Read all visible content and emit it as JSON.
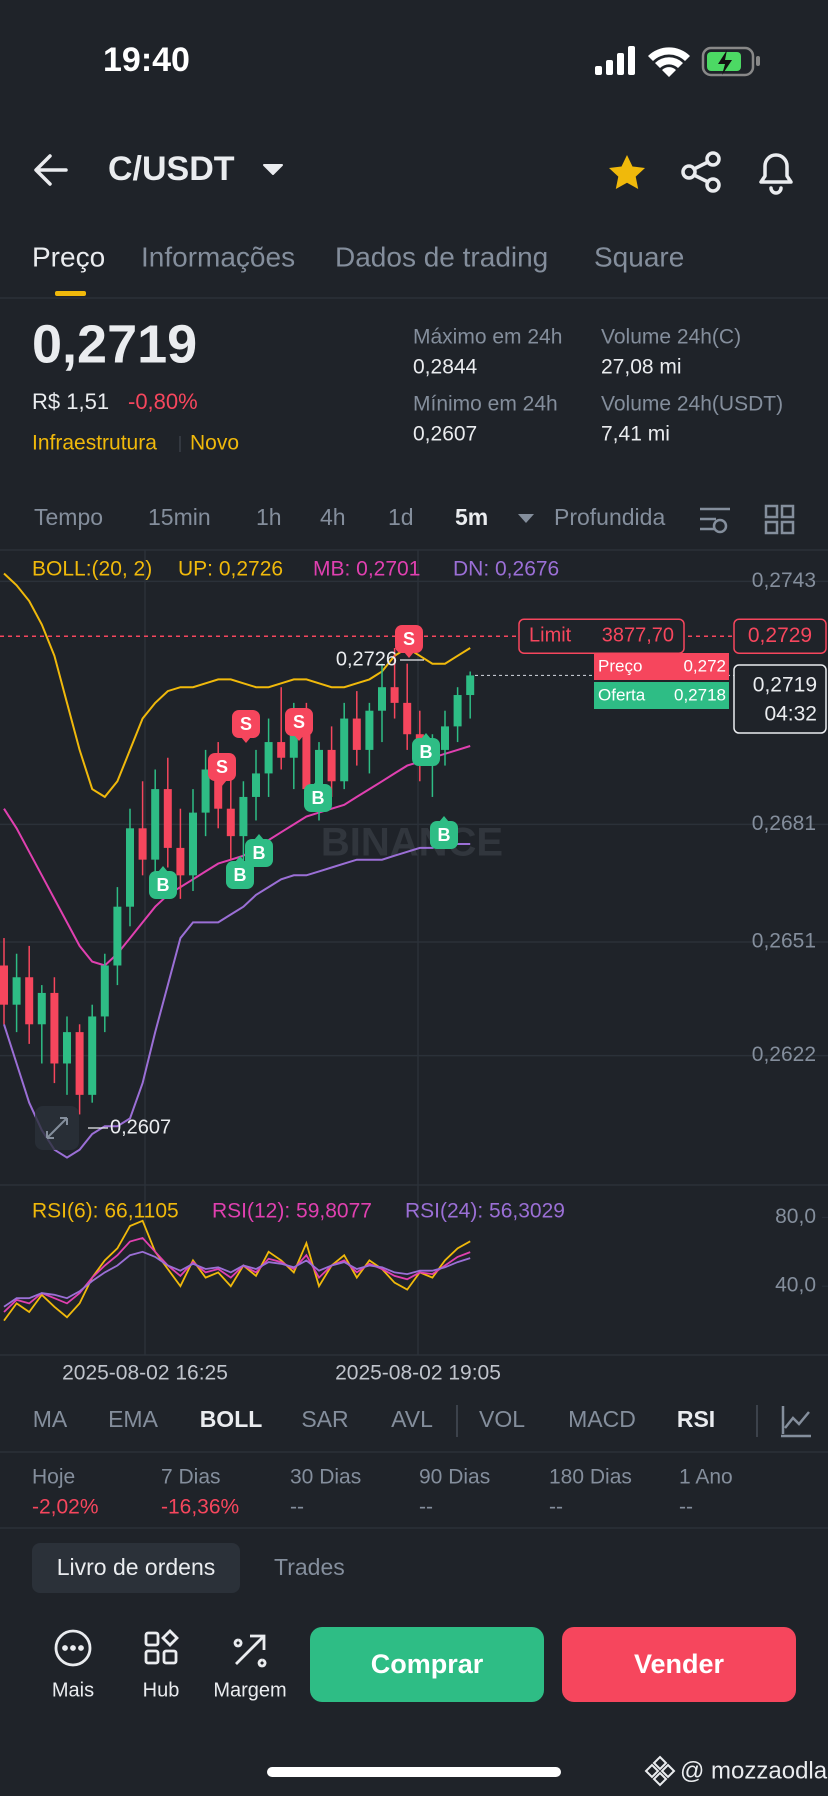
{
  "status_bar": {
    "time": "19:40"
  },
  "header": {
    "pair": "C/USDT"
  },
  "tabs": [
    "Preço",
    "Informações",
    "Dados de trading",
    "Square"
  ],
  "price": {
    "last": "0,2719",
    "fiat": "R$ 1,51",
    "change": "-0,80%",
    "tags": [
      "Infraestrutura",
      "Novo"
    ]
  },
  "stats": [
    {
      "label": "Máximo em 24h",
      "value": "0,2844"
    },
    {
      "label": "Mínimo em 24h",
      "value": "0,2607"
    },
    {
      "label": "Volume 24h(C)",
      "value": "27,08 mi"
    },
    {
      "label": "Volume 24h(USDT)",
      "value": "7,41 mi"
    }
  ],
  "intervals": [
    "Tempo",
    "15min",
    "1h",
    "4h",
    "1d",
    "5m",
    "Profundida"
  ],
  "chart_data": [
    {
      "type": "candlestick",
      "indicator": "BOLL:(20, 2)",
      "up_color": "#2ebd85",
      "down_color": "#f6465d",
      "open": [
        0.2645,
        0.2635,
        0.2642,
        0.263,
        0.2638,
        0.262,
        0.2628,
        0.2612,
        0.2632,
        0.2645,
        0.266,
        0.268,
        0.2672,
        0.269,
        0.2675,
        0.2668,
        0.2684,
        0.2695,
        0.2685,
        0.2678,
        0.2688,
        0.2694,
        0.2702,
        0.2698,
        0.2708,
        0.269,
        0.27,
        0.2692,
        0.2708,
        0.27,
        0.271,
        0.2716,
        0.2712,
        0.2704,
        0.2696,
        0.27,
        0.2706,
        0.2714
      ],
      "high": [
        0.2652,
        0.2648,
        0.265,
        0.264,
        0.2642,
        0.2632,
        0.263,
        0.2635,
        0.2648,
        0.2665,
        0.2685,
        0.2692,
        0.2695,
        0.2698,
        0.2685,
        0.269,
        0.27,
        0.2702,
        0.2695,
        0.2692,
        0.27,
        0.2708,
        0.2716,
        0.2712,
        0.2712,
        0.2702,
        0.2706,
        0.2712,
        0.2715,
        0.2712,
        0.2722,
        0.2726,
        0.2722,
        0.271,
        0.2704,
        0.271,
        0.2716,
        0.272
      ],
      "low": [
        0.263,
        0.2628,
        0.2625,
        0.262,
        0.2615,
        0.2612,
        0.2607,
        0.261,
        0.2628,
        0.264,
        0.2655,
        0.2668,
        0.2665,
        0.267,
        0.2662,
        0.2664,
        0.2678,
        0.268,
        0.2672,
        0.267,
        0.2682,
        0.2688,
        0.2695,
        0.269,
        0.2685,
        0.2682,
        0.2688,
        0.269,
        0.2696,
        0.2694,
        0.2702,
        0.2708,
        0.27,
        0.2692,
        0.2688,
        0.2696,
        0.2702,
        0.2708
      ],
      "close": [
        0.2635,
        0.2642,
        0.263,
        0.2638,
        0.262,
        0.2628,
        0.2612,
        0.2632,
        0.2645,
        0.266,
        0.268,
        0.2672,
        0.269,
        0.2675,
        0.2668,
        0.2684,
        0.2695,
        0.2685,
        0.2678,
        0.2688,
        0.2694,
        0.2702,
        0.2698,
        0.2708,
        0.269,
        0.27,
        0.2692,
        0.2708,
        0.27,
        0.271,
        0.2716,
        0.2712,
        0.2704,
        0.2696,
        0.27,
        0.2706,
        0.2714,
        0.2719
      ],
      "series": [
        {
          "name": "UP: 0,2726",
          "color": "#f0b90b",
          "values": [
            0.2745,
            0.2742,
            0.2738,
            0.2732,
            0.2724,
            0.2712,
            0.27,
            0.269,
            0.2688,
            0.2692,
            0.27,
            0.2708,
            0.2712,
            0.2715,
            0.2716,
            0.2716,
            0.2717,
            0.2718,
            0.2718,
            0.2717,
            0.2716,
            0.2716,
            0.2717,
            0.2718,
            0.2718,
            0.2717,
            0.2716,
            0.2716,
            0.2717,
            0.2718,
            0.272,
            0.2724,
            0.2726,
            0.2724,
            0.2722,
            0.2722,
            0.2724,
            0.2726
          ]
        },
        {
          "name": "MB: 0,2701",
          "color": "#e040b0",
          "values": [
            0.2685,
            0.268,
            0.2674,
            0.2668,
            0.2662,
            0.2656,
            0.265,
            0.2646,
            0.2645,
            0.2648,
            0.2652,
            0.2656,
            0.266,
            0.2663,
            0.2665,
            0.2667,
            0.2669,
            0.2671,
            0.2672,
            0.2673,
            0.2675,
            0.2677,
            0.2679,
            0.2681,
            0.2683,
            0.2684,
            0.2685,
            0.2686,
            0.2688,
            0.269,
            0.2692,
            0.2694,
            0.2696,
            0.2697,
            0.2698,
            0.2699,
            0.27,
            0.2701
          ]
        },
        {
          "name": "DN: 0,2676",
          "color": "#9b6fd6",
          "values": [
            0.263,
            0.262,
            0.261,
            0.2603,
            0.2598,
            0.2596,
            0.2598,
            0.2602,
            0.2604,
            0.2604,
            0.2606,
            0.2615,
            0.2628,
            0.264,
            0.2652,
            0.2656,
            0.2656,
            0.2656,
            0.2658,
            0.266,
            0.2663,
            0.2665,
            0.2667,
            0.2668,
            0.2668,
            0.2669,
            0.267,
            0.2671,
            0.2672,
            0.2672,
            0.2672,
            0.2673,
            0.2674,
            0.2675,
            0.2675,
            0.2676,
            0.2676,
            0.2676
          ]
        }
      ],
      "ylim": [
        0.2589,
        0.2751
      ],
      "yticks": [
        {
          "value": 0.2743,
          "label": "0,2743"
        },
        {
          "value": 0.2681,
          "label": "0,2681"
        },
        {
          "value": 0.2651,
          "label": "0,2651"
        },
        {
          "value": 0.2622,
          "label": "0,2622"
        }
      ],
      "grid": true,
      "trade_markers": [
        "S",
        "S",
        "S",
        "S",
        "B",
        "B",
        "B",
        "B",
        "B",
        "B"
      ],
      "high_label": "0,2726",
      "low_label": "0,2607",
      "limit": {
        "label": "Limit",
        "amount": "3877,70",
        "price": {
          "value": 0.2729,
          "label": "0,2729"
        }
      },
      "quote": {
        "ask_label": "Preço",
        "ask": "0,272",
        "bid_label": "Oferta",
        "bid": "0,2718",
        "last": {
          "value": 0.2719,
          "label": "0,2719"
        },
        "countdown": "04:32"
      },
      "watermark": "BINANCE"
    },
    {
      "type": "line",
      "series": [
        {
          "name": "RSI(6): 66,1105",
          "color": "#f0b90b",
          "values": [
            20,
            30,
            25,
            35,
            28,
            22,
            30,
            45,
            55,
            62,
            75,
            78,
            60,
            50,
            40,
            55,
            45,
            48,
            40,
            52,
            46,
            60,
            55,
            48,
            65,
            40,
            52,
            58,
            45,
            55,
            50,
            42,
            38,
            48,
            45,
            55,
            62,
            66.11
          ]
        },
        {
          "name": "RSI(12): 59,8077",
          "color": "#e040b0",
          "values": [
            25,
            32,
            30,
            36,
            33,
            30,
            36,
            45,
            52,
            58,
            66,
            68,
            60,
            52,
            46,
            54,
            48,
            50,
            45,
            52,
            48,
            56,
            54,
            50,
            58,
            45,
            52,
            55,
            48,
            53,
            50,
            46,
            44,
            48,
            47,
            52,
            57,
            59.81
          ]
        },
        {
          "name": "RSI(24): 56,3029",
          "color": "#9b6fd6",
          "values": [
            28,
            33,
            33,
            36,
            35,
            33,
            37,
            43,
            48,
            52,
            58,
            60,
            57,
            52,
            49,
            53,
            50,
            51,
            48,
            52,
            50,
            54,
            53,
            51,
            55,
            49,
            52,
            54,
            50,
            52,
            51,
            48,
            47,
            49,
            49,
            51,
            54,
            56.3
          ]
        }
      ],
      "ylim": [
        0,
        93
      ],
      "yticks": [
        {
          "value": 80,
          "label": "80,0"
        },
        {
          "value": 40,
          "label": "40,0"
        }
      ],
      "x_labels": [
        "2025-08-02 16:25",
        "2025-08-02 19:05"
      ]
    }
  ],
  "indicators": [
    "MA",
    "EMA",
    "BOLL",
    "SAR",
    "AVL",
    "VOL",
    "MACD",
    "RSI"
  ],
  "performance": [
    {
      "label": "Hoje",
      "value": "-2,02%"
    },
    {
      "label": "7 Dias",
      "value": "-16,36%"
    },
    {
      "label": "30 Dias",
      "value": "--"
    },
    {
      "label": "90 Dias",
      "value": "--"
    },
    {
      "label": "180 Dias",
      "value": "--"
    },
    {
      "label": "1 Ano",
      "value": "--"
    }
  ],
  "order_tabs": [
    "Livro de ordens",
    "Trades"
  ],
  "actions": [
    "Mais",
    "Hub",
    "Margem"
  ],
  "buttons": {
    "buy": "Comprar",
    "sell": "Vender"
  },
  "credit": "@ mozzaodla"
}
